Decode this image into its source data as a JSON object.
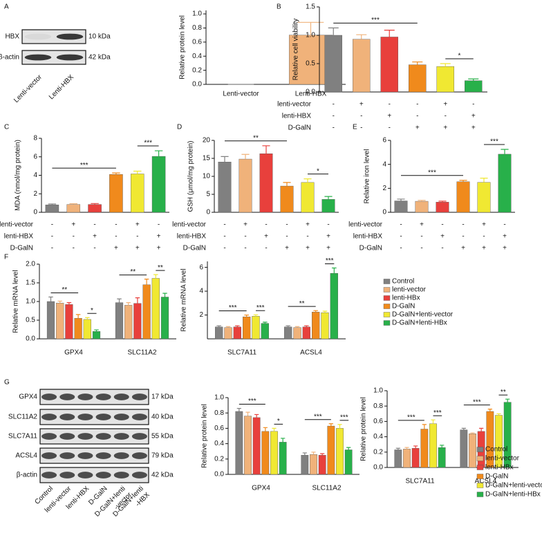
{
  "panels": [
    "A",
    "B",
    "C",
    "D",
    "E",
    "F",
    "G"
  ],
  "blot_a": {
    "rows": [
      {
        "label": "HBX",
        "size": "10 kDa"
      },
      {
        "label": "β-actin",
        "size": "42 kDa"
      }
    ],
    "lanes": [
      [
        "Lenti-vector"
      ],
      [
        "Lenti-HBX"
      ]
    ]
  },
  "blot_g": {
    "rows": [
      {
        "label": "GPX4",
        "size": "17 kDa"
      },
      {
        "label": "SLC11A2",
        "size": "40 kDa"
      },
      {
        "label": "SLC7A11",
        "size": "55 kDa"
      },
      {
        "label": "ACSL4",
        "size": "79 kDa"
      },
      {
        "label": "β-actin",
        "size": "42 kDa"
      }
    ],
    "lanes": [
      [
        "Control"
      ],
      [
        "lenti-vector"
      ],
      [
        "lenti-HBX"
      ],
      [
        "D-GalN"
      ],
      [
        "D-GalN+lenti",
        "-vector"
      ],
      [
        "D-GalN+lenti",
        "-HBX"
      ]
    ]
  },
  "chart_data": [
    {
      "type": "bar",
      "ylabel": "Relative protein level",
      "categories": [
        "Lenti-vector",
        "Lenti-HBX"
      ],
      "values": [
        0,
        0.7
      ],
      "errors": [
        0,
        0.18
      ],
      "colors": [
        "#808080",
        "#f0b27a"
      ],
      "ylim": [
        0,
        1.05
      ],
      "yticks": [
        {
          "value": 0,
          "label": "0.0"
        },
        0.2,
        0.4,
        0.6,
        0.8,
        {
          "value": 1,
          "label": "1.0"
        }
      ]
    },
    {
      "type": "bar",
      "ylabel": "Relative cell viability",
      "values": [
        1.0,
        0.93,
        0.97,
        0.48,
        0.45,
        0.2
      ],
      "errors": [
        0.13,
        0.08,
        0.12,
        0.05,
        0.05,
        0.03
      ],
      "colors": [
        "#808080",
        "#f0b27a",
        "#e8403c",
        "#f08a1c",
        "#f0e832",
        "#28b04a"
      ],
      "ylim": [
        0,
        1.5
      ],
      "yticks": [
        {
          "value": 0,
          "label": "0.0"
        },
        0.5,
        {
          "value": 1,
          "label": "1.0"
        },
        1.5
      ],
      "conditions": [
        {
          "name": "lenti-vector",
          "signs": [
            "-",
            "+",
            "-",
            "-",
            "+",
            "-"
          ]
        },
        {
          "name": "lenti-HBX",
          "signs": [
            "-",
            "-",
            "+",
            "-",
            "-",
            "+"
          ]
        },
        {
          "name": "D-GalN",
          "signs": [
            "-",
            "-",
            "-",
            "+",
            "+",
            "+"
          ]
        }
      ],
      "annotations": [
        {
          "text": "***",
          "from": 0,
          "to": 3
        },
        {
          "text": "*",
          "from": 4,
          "to": 5
        }
      ]
    },
    {
      "type": "bar",
      "ylabel": "MDA (nmol/mg protein)",
      "values": [
        0.8,
        0.85,
        0.85,
        4.1,
        4.15,
        6.05
      ],
      "errors": [
        0.1,
        0.08,
        0.1,
        0.15,
        0.3,
        0.6
      ],
      "colors": [
        "#808080",
        "#f0b27a",
        "#e8403c",
        "#f08a1c",
        "#f0e832",
        "#28b04a"
      ],
      "ylim": [
        0,
        8
      ],
      "yticks": [
        0,
        2,
        4,
        6,
        8
      ],
      "conditions": [
        {
          "name": "lenti-vector",
          "signs": [
            "-",
            "+",
            "-",
            "-",
            "+",
            "-"
          ]
        },
        {
          "name": "lenti-HBX",
          "signs": [
            "-",
            "-",
            "+",
            "-",
            "-",
            "+"
          ]
        },
        {
          "name": "D-GalN",
          "signs": [
            "-",
            "-",
            "-",
            "+",
            "+",
            "+"
          ]
        }
      ],
      "annotations": [
        {
          "text": "***",
          "from": 0,
          "to": 3
        },
        {
          "text": "***",
          "from": 4,
          "to": 5
        }
      ]
    },
    {
      "type": "bar",
      "ylabel": "GSH (μmol/mg protein)",
      "values": [
        14,
        14.8,
        16.3,
        7.3,
        8.3,
        3.6
      ],
      "errors": [
        1.5,
        1.3,
        2.2,
        1.0,
        1.0,
        0.8
      ],
      "colors": [
        "#808080",
        "#f0b27a",
        "#e8403c",
        "#f08a1c",
        "#f0e832",
        "#28b04a"
      ],
      "ylim": [
        0,
        20
      ],
      "yticks": [
        0,
        5,
        10,
        15,
        20
      ],
      "conditions": [
        {
          "name": "lenti-vector",
          "signs": [
            "-",
            "+",
            "-",
            "-",
            "+",
            "-"
          ]
        },
        {
          "name": "lenti-HBX",
          "signs": [
            "-",
            "-",
            "+",
            "-",
            "-",
            "+"
          ]
        },
        {
          "name": "D-GalN",
          "signs": [
            "-",
            "-",
            "-",
            "+",
            "+",
            "+"
          ]
        }
      ],
      "annotations": [
        {
          "text": "**",
          "from": 0,
          "to": 3
        },
        {
          "text": "*",
          "from": 4,
          "to": 5
        }
      ]
    },
    {
      "type": "bar",
      "ylabel": "Relative iron level",
      "values": [
        0.95,
        0.92,
        0.85,
        2.55,
        2.5,
        4.85
      ],
      "errors": [
        0.15,
        0.08,
        0.08,
        0.12,
        0.35,
        0.4
      ],
      "colors": [
        "#808080",
        "#f0b27a",
        "#e8403c",
        "#f08a1c",
        "#f0e832",
        "#28b04a"
      ],
      "ylim": [
        0,
        6
      ],
      "yticks": [
        0,
        2,
        4,
        6
      ],
      "conditions": [
        {
          "name": "lenti-vector",
          "signs": [
            "-",
            "+",
            "-",
            "-",
            "+",
            "-"
          ]
        },
        {
          "name": "lenti-HBX",
          "signs": [
            "-",
            "-",
            "+",
            "-",
            "-",
            "+"
          ]
        },
        {
          "name": "D-GalN",
          "signs": [
            "-",
            "-",
            "-",
            "+",
            "+",
            "+"
          ]
        }
      ],
      "annotations": [
        {
          "text": "***",
          "from": 0,
          "to": 3
        },
        {
          "text": "***",
          "from": 4,
          "to": 5
        }
      ]
    },
    {
      "type": "grouped_bar",
      "ylabel": "Relative mRNA level",
      "categories": [
        "GPX4",
        "SLC11A2"
      ],
      "ylim": [
        0,
        2.0
      ],
      "yticks": [
        {
          "value": 0,
          "label": "0.0"
        },
        0.5,
        {
          "value": 1,
          "label": "1.0"
        },
        1.5,
        {
          "value": 2,
          "label": "2.0"
        }
      ],
      "series": [
        {
          "color": "#808080",
          "values": [
            1.0,
            0.97
          ],
          "errors": [
            0.12,
            0.1
          ]
        },
        {
          "color": "#f0b27a",
          "values": [
            0.96,
            0.9
          ],
          "errors": [
            0.05,
            0.07
          ]
        },
        {
          "color": "#e8403c",
          "values": [
            0.92,
            0.95
          ],
          "errors": [
            0.05,
            0.15
          ]
        },
        {
          "color": "#f08a1c",
          "values": [
            0.55,
            1.45
          ],
          "errors": [
            0.1,
            0.15
          ]
        },
        {
          "color": "#f0e832",
          "values": [
            0.52,
            1.62
          ],
          "errors": [
            0.05,
            0.1
          ]
        },
        {
          "color": "#28b04a",
          "values": [
            0.2,
            1.12
          ],
          "errors": [
            0.04,
            0.1
          ]
        }
      ],
      "annotations": [
        {
          "text": "**",
          "group": 0,
          "from": 0,
          "to": 3
        },
        {
          "text": "*",
          "group": 0,
          "from": 4,
          "to": 5
        },
        {
          "text": "**",
          "group": 1,
          "from": 0,
          "to": 3
        },
        {
          "text": "**",
          "group": 1,
          "from": 4,
          "to": 5
        }
      ]
    },
    {
      "type": "grouped_bar",
      "ylabel": "Relative mRNA level",
      "categories": [
        "SLC7A11",
        "ACSL4"
      ],
      "legend": true,
      "ylim": [
        0,
        6.5
      ],
      "yticks": [
        2,
        4,
        6
      ],
      "series": [
        {
          "name": "Control",
          "color": "#808080",
          "values": [
            1.0,
            1.0
          ],
          "errors": [
            0.1,
            0.1
          ]
        },
        {
          "name": "lenti-vector",
          "color": "#f0b27a",
          "values": [
            0.95,
            0.95
          ],
          "errors": [
            0.08,
            0.08
          ]
        },
        {
          "name": "lenti-HBx",
          "color": "#e8403c",
          "values": [
            1.0,
            1.0
          ],
          "errors": [
            0.1,
            0.1
          ]
        },
        {
          "name": "D-GalN",
          "color": "#f08a1c",
          "values": [
            1.85,
            2.25
          ],
          "errors": [
            0.15,
            0.12
          ]
        },
        {
          "name": "D-GalN+lenti-vector",
          "color": "#f0e832",
          "values": [
            1.9,
            2.2
          ],
          "errors": [
            0.12,
            0.12
          ]
        },
        {
          "name": "D-GalN+lenti-HBx",
          "color": "#28b04a",
          "values": [
            1.3,
            5.5
          ],
          "errors": [
            0.1,
            0.45
          ]
        }
      ],
      "annotations": [
        {
          "text": "***",
          "group": 0,
          "from": 0,
          "to": 3
        },
        {
          "text": "***",
          "group": 0,
          "from": 4,
          "to": 5
        },
        {
          "text": "**",
          "group": 1,
          "from": 0,
          "to": 3
        },
        {
          "text": "***",
          "group": 1,
          "from": 4,
          "to": 5
        }
      ]
    },
    {
      "type": "grouped_bar",
      "ylabel": "Relative protein level",
      "categories": [
        "GPX4",
        "SLC11A2"
      ],
      "ylim": [
        0,
        1.0
      ],
      "yticks": [
        {
          "value": 0,
          "label": "0.0"
        },
        0.2,
        0.4,
        0.6,
        0.8,
        {
          "value": 1,
          "label": "1.0"
        }
      ],
      "series": [
        {
          "color": "#808080",
          "values": [
            0.82,
            0.25
          ],
          "errors": [
            0.04,
            0.03
          ]
        },
        {
          "color": "#f0b27a",
          "values": [
            0.76,
            0.26
          ],
          "errors": [
            0.05,
            0.03
          ]
        },
        {
          "color": "#e8403c",
          "values": [
            0.74,
            0.25
          ],
          "errors": [
            0.04,
            0.02
          ]
        },
        {
          "color": "#f08a1c",
          "values": [
            0.56,
            0.63
          ],
          "errors": [
            0.05,
            0.03
          ]
        },
        {
          "color": "#f0e832",
          "values": [
            0.56,
            0.6
          ],
          "errors": [
            0.04,
            0.05
          ]
        },
        {
          "color": "#28b04a",
          "values": [
            0.42,
            0.32
          ],
          "errors": [
            0.05,
            0.03
          ]
        }
      ],
      "annotations": [
        {
          "text": "***",
          "group": 0,
          "from": 0,
          "to": 3
        },
        {
          "text": "*",
          "group": 0,
          "from": 4,
          "to": 5
        },
        {
          "text": "***",
          "group": 1,
          "from": 0,
          "to": 3
        },
        {
          "text": "***",
          "group": 1,
          "from": 4,
          "to": 5
        }
      ]
    },
    {
      "type": "grouped_bar",
      "ylabel": "Relative protein level",
      "categories": [
        "SLC7A11",
        "ACSL4"
      ],
      "legend": true,
      "ylim": [
        0,
        1.0
      ],
      "yticks": [
        {
          "value": 0,
          "label": "0.0"
        },
        0.2,
        0.4,
        0.6,
        0.8,
        {
          "value": 1,
          "label": "1.0"
        }
      ],
      "series": [
        {
          "name": "Control",
          "color": "#808080",
          "values": [
            0.23,
            0.49
          ],
          "errors": [
            0.02,
            0.02
          ]
        },
        {
          "name": "lenti-vector",
          "color": "#f0b27a",
          "values": [
            0.24,
            0.44
          ],
          "errors": [
            0.02,
            0.01
          ]
        },
        {
          "name": "lenti-HBx",
          "color": "#e8403c",
          "values": [
            0.25,
            0.47
          ],
          "errors": [
            0.03,
            0.04
          ]
        },
        {
          "name": "D-GalN",
          "color": "#f08a1c",
          "values": [
            0.5,
            0.73
          ],
          "errors": [
            0.06,
            0.03
          ]
        },
        {
          "name": "D-GalN+lenti-vector",
          "color": "#f0e832",
          "values": [
            0.57,
            0.68
          ],
          "errors": [
            0.05,
            0.02
          ]
        },
        {
          "name": "D-GalN+lenti-HBx",
          "color": "#28b04a",
          "values": [
            0.26,
            0.85
          ],
          "errors": [
            0.03,
            0.04
          ]
        }
      ],
      "annotations": [
        {
          "text": "***",
          "group": 0,
          "from": 0,
          "to": 3
        },
        {
          "text": "***",
          "group": 0,
          "from": 4,
          "to": 5
        },
        {
          "text": "***",
          "group": 1,
          "from": 0,
          "to": 3
        },
        {
          "text": "**",
          "group": 1,
          "from": 4,
          "to": 5
        }
      ]
    }
  ]
}
